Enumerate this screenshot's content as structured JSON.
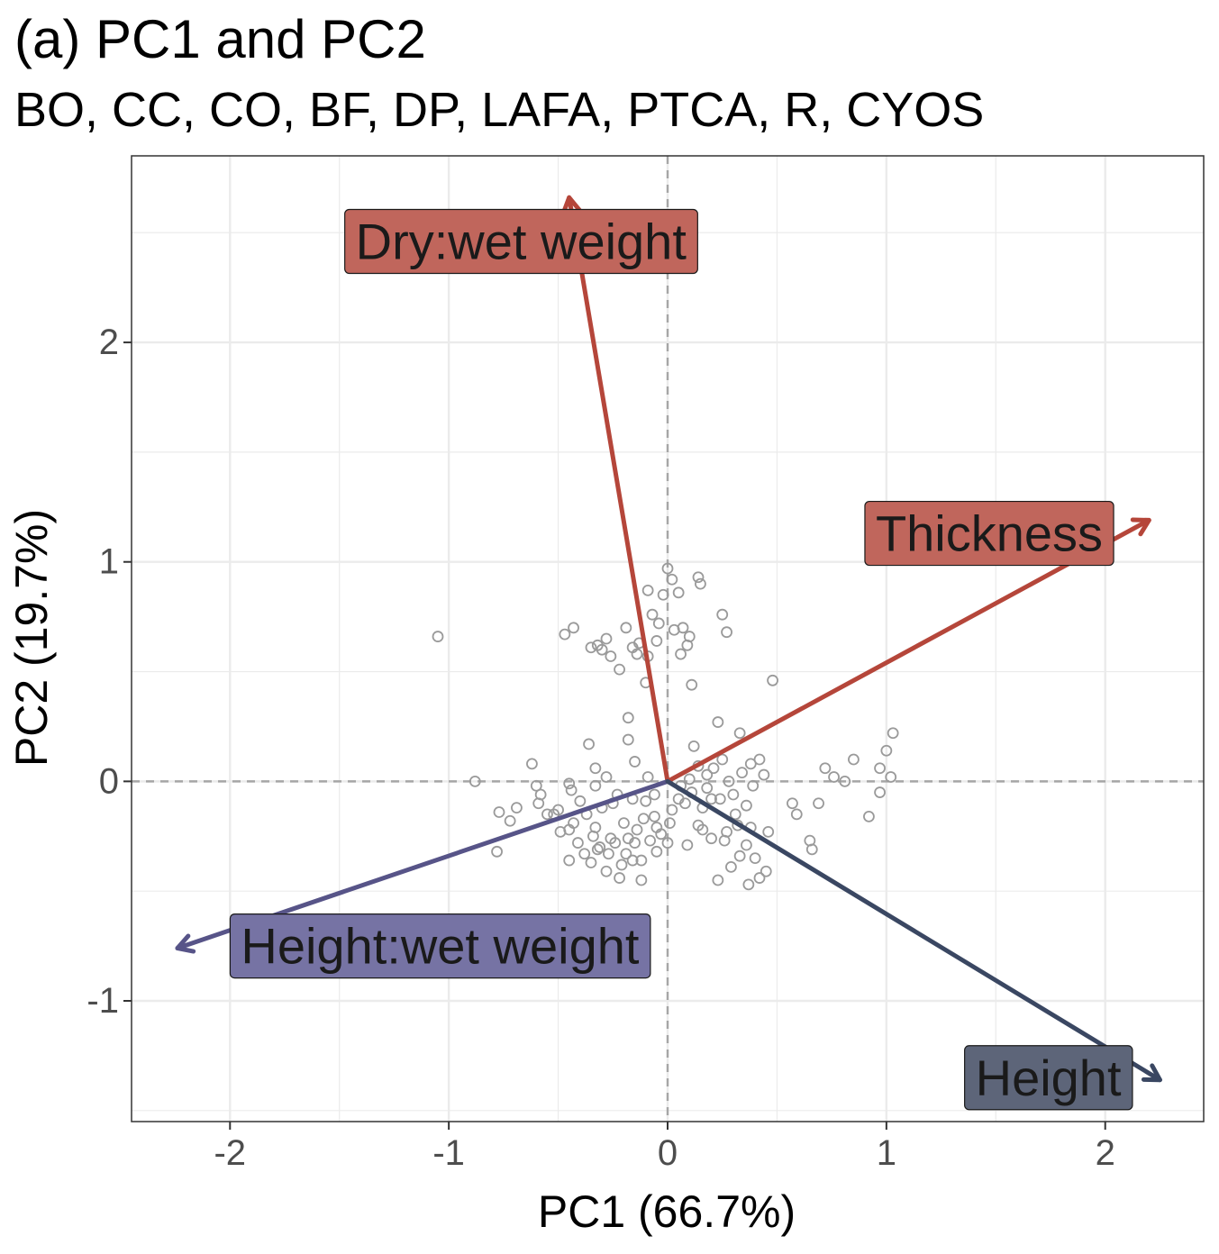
{
  "chart_data": {
    "type": "scatter",
    "title": "(a) PC1 and PC2",
    "subtitle": "BO, CC, CO, BF, DP, LAFA, PTCA, R, CYOS",
    "xlabel": "PC1 (66.7%)",
    "ylabel": "PC2 (19.7%)",
    "xlim": [
      -2.45,
      2.45
    ],
    "ylim": [
      -1.55,
      2.85
    ],
    "x_ticks": [
      "-2",
      "-1",
      "0",
      "1",
      "2"
    ],
    "y_ticks": [
      "-1",
      "0",
      "1",
      "2"
    ],
    "grid": true,
    "reference_lines": {
      "x": 0,
      "y": 0,
      "style": "dashed"
    },
    "point_color": "#9a9a9a",
    "points": [
      [
        -1.05,
        0.66
      ],
      [
        -0.88,
        0.0
      ],
      [
        -0.78,
        -0.32
      ],
      [
        -0.77,
        -0.14
      ],
      [
        -0.72,
        -0.18
      ],
      [
        -0.69,
        -0.12
      ],
      [
        -0.62,
        0.08
      ],
      [
        -0.6,
        -0.02
      ],
      [
        -0.58,
        -0.06
      ],
      [
        -0.59,
        -0.1
      ],
      [
        -0.55,
        -0.15
      ],
      [
        -0.5,
        -0.13
      ],
      [
        -0.49,
        -0.23
      ],
      [
        -0.45,
        -0.36
      ],
      [
        -0.45,
        -0.22
      ],
      [
        -0.43,
        -0.19
      ],
      [
        -0.44,
        -0.04
      ],
      [
        -0.41,
        -0.28
      ],
      [
        -0.37,
        -0.15
      ],
      [
        -0.35,
        -0.37
      ],
      [
        -0.34,
        -0.25
      ],
      [
        -0.32,
        -0.31
      ],
      [
        -0.31,
        -0.3
      ],
      [
        -0.36,
        0.17
      ],
      [
        -0.33,
        0.06
      ],
      [
        -0.28,
        -0.41
      ],
      [
        -0.24,
        -0.28
      ],
      [
        -0.23,
        -0.06
      ],
      [
        -0.19,
        -0.33
      ],
      [
        -0.12,
        -0.45
      ],
      [
        -0.16,
        -0.36
      ],
      [
        -0.1,
        -0.09
      ],
      [
        -0.05,
        -0.32
      ],
      [
        -0.03,
        -0.24
      ],
      [
        0.01,
        -0.19
      ],
      [
        -0.47,
        0.67
      ],
      [
        -0.43,
        0.7
      ],
      [
        -0.35,
        0.61
      ],
      [
        -0.32,
        0.62
      ],
      [
        -0.3,
        0.6
      ],
      [
        -0.28,
        0.65
      ],
      [
        -0.26,
        0.57
      ],
      [
        -0.22,
        0.51
      ],
      [
        -0.19,
        0.7
      ],
      [
        -0.16,
        0.61
      ],
      [
        -0.13,
        0.63
      ],
      [
        -0.09,
        0.87
      ],
      [
        -0.07,
        0.76
      ],
      [
        -0.04,
        0.72
      ],
      [
        -0.02,
        0.85
      ],
      [
        0.0,
        0.97
      ],
      [
        0.02,
        0.92
      ],
      [
        0.05,
        0.86
      ],
      [
        0.07,
        0.7
      ],
      [
        0.1,
        0.66
      ],
      [
        0.14,
        0.93
      ],
      [
        0.15,
        0.9
      ],
      [
        0.25,
        0.76
      ],
      [
        0.27,
        0.68
      ],
      [
        0.06,
        0.58
      ],
      [
        -0.1,
        0.45
      ],
      [
        -0.18,
        0.29
      ],
      [
        -0.18,
        0.19
      ],
      [
        0.11,
        0.44
      ],
      [
        0.23,
        0.27
      ],
      [
        0.33,
        0.22
      ],
      [
        0.48,
        0.46
      ],
      [
        0.12,
        0.16
      ],
      [
        0.25,
        0.1
      ],
      [
        0.38,
        0.08
      ],
      [
        0.42,
        0.1
      ],
      [
        0.44,
        0.03
      ],
      [
        0.39,
        -0.02
      ],
      [
        0.36,
        -0.11
      ],
      [
        0.3,
        -0.06
      ],
      [
        0.24,
        -0.08
      ],
      [
        0.18,
        -0.03
      ],
      [
        0.1,
        0.01
      ],
      [
        0.05,
        -0.08
      ],
      [
        0.14,
        -0.2
      ],
      [
        0.2,
        -0.26
      ],
      [
        0.26,
        -0.27
      ],
      [
        0.32,
        -0.2
      ],
      [
        0.36,
        -0.29
      ],
      [
        0.4,
        -0.35
      ],
      [
        0.42,
        -0.44
      ],
      [
        0.45,
        -0.41
      ],
      [
        0.37,
        -0.47
      ],
      [
        0.29,
        -0.39
      ],
      [
        0.23,
        -0.45
      ],
      [
        0.46,
        -0.23
      ],
      [
        0.57,
        -0.1
      ],
      [
        0.59,
        -0.15
      ],
      [
        0.65,
        -0.27
      ],
      [
        0.66,
        -0.31
      ],
      [
        0.69,
        -0.1
      ],
      [
        0.72,
        0.06
      ],
      [
        0.76,
        0.02
      ],
      [
        0.81,
        0.0
      ],
      [
        0.85,
        0.1
      ],
      [
        0.92,
        -0.16
      ],
      [
        0.97,
        0.06
      ],
      [
        0.97,
        -0.05
      ],
      [
        1.0,
        0.14
      ],
      [
        1.02,
        0.02
      ],
      [
        1.03,
        0.22
      ],
      [
        -0.12,
        -0.36
      ],
      [
        -0.08,
        -0.27
      ],
      [
        -0.05,
        -0.21
      ],
      [
        0.02,
        -0.13
      ],
      [
        0.08,
        -0.1
      ],
      [
        -0.26,
        -0.26
      ],
      [
        -0.2,
        -0.19
      ],
      [
        -0.14,
        -0.22
      ],
      [
        -0.06,
        -0.16
      ],
      [
        0.0,
        -0.28
      ],
      [
        -0.4,
        -0.09
      ],
      [
        -0.3,
        -0.12
      ],
      [
        -0.25,
        -0.1
      ],
      [
        -0.16,
        -0.08
      ],
      [
        -0.21,
        -0.38
      ],
      [
        -0.18,
        -0.26
      ],
      [
        -0.11,
        -0.17
      ],
      [
        -0.27,
        -0.33
      ],
      [
        -0.22,
        -0.44
      ],
      [
        0.11,
        -0.05
      ],
      [
        0.16,
        -0.12
      ],
      [
        0.18,
        0.03
      ],
      [
        0.28,
        0.0
      ],
      [
        0.34,
        0.04
      ],
      [
        0.2,
        -0.08
      ],
      [
        0.31,
        -0.15
      ],
      [
        0.38,
        -0.21
      ],
      [
        0.33,
        -0.34
      ],
      [
        0.27,
        -0.23
      ],
      [
        0.16,
        -0.22
      ],
      [
        0.09,
        -0.29
      ],
      [
        -0.14,
        0.58
      ],
      [
        -0.09,
        0.57
      ],
      [
        -0.05,
        0.64
      ],
      [
        0.03,
        0.69
      ],
      [
        0.09,
        0.62
      ],
      [
        -0.15,
        0.09
      ],
      [
        -0.28,
        0.02
      ],
      [
        -0.33,
        -0.02
      ],
      [
        -0.09,
        0.02
      ],
      [
        -0.15,
        -0.28
      ],
      [
        -0.33,
        -0.21
      ],
      [
        -0.38,
        -0.33
      ],
      [
        -0.06,
        -0.06
      ],
      [
        0.21,
        0.06
      ],
      [
        0.14,
        0.07
      ],
      [
        0.06,
        -0.02
      ],
      [
        -0.45,
        -0.01
      ],
      [
        -0.52,
        -0.15
      ]
    ],
    "vectors": [
      {
        "label": "Dry:wet weight",
        "x": -0.45,
        "y": 2.66,
        "color": "#b5463a",
        "label_fill": "#c0665c",
        "label_x": -0.67,
        "label_y": 2.46
      },
      {
        "label": "Thickness",
        "x": 2.2,
        "y": 1.19,
        "color": "#b5463a",
        "label_fill": "#c0665c",
        "label_x": 1.47,
        "label_y": 1.13
      },
      {
        "label": "Height:wet weight",
        "x": -2.24,
        "y": -0.76,
        "color": "#575488",
        "label_fill": "#7673a4",
        "label_x": -1.04,
        "label_y": -0.75
      },
      {
        "label": "Height",
        "x": 2.25,
        "y": -1.36,
        "color": "#3a4762",
        "label_fill": "#5d6579",
        "label_x": 1.74,
        "label_y": -1.35
      }
    ]
  }
}
